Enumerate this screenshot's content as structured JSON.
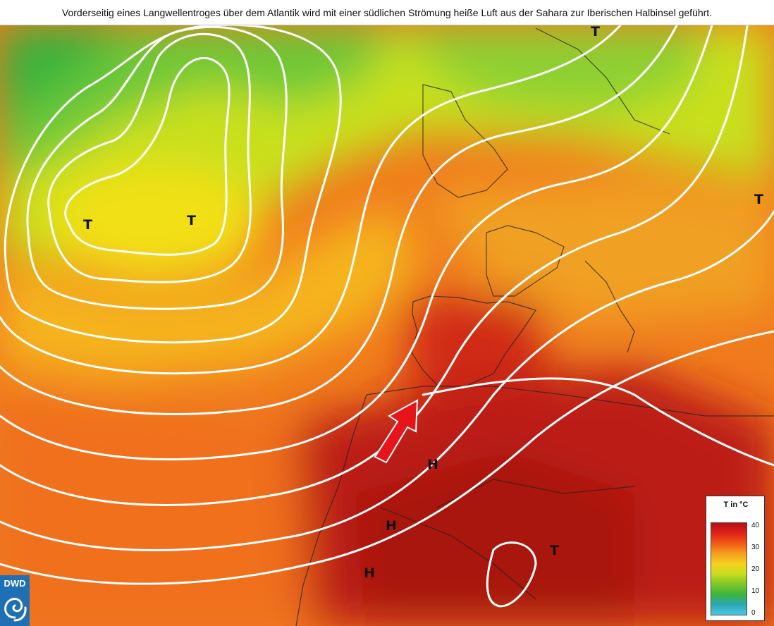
{
  "caption": "Vorderseitig eines Langwellentroges über dem Atlantik wird mit einer südlichen Strömung heiße Luft aus der Sahara zur Iberischen Halbinsel geführt.",
  "map": {
    "region": "North Atlantic, Europe and North Africa",
    "field": "temperature",
    "contours": "white geopotential isolines",
    "flow_arrow": {
      "color": "#e8141c",
      "direction": "north-east",
      "meaning": "southerly flow of hot Saharan air towards the Iberian Peninsula"
    },
    "pressure_symbols": [
      {
        "label": "T"
      },
      {
        "label": "T"
      },
      {
        "label": "T"
      },
      {
        "label": "T"
      },
      {
        "label": "T"
      },
      {
        "label": "H"
      },
      {
        "label": "H"
      },
      {
        "label": "H"
      }
    ]
  },
  "legend": {
    "title": "T in °C",
    "ticks": [
      "40",
      "30",
      "20",
      "10",
      "0"
    ],
    "colors": [
      "#b80f14",
      "#e0231a",
      "#f05a14",
      "#f5a020",
      "#f5d21e",
      "#c8dc1e",
      "#7ec828",
      "#3cb43c",
      "#2ca8b4",
      "#48c8e6"
    ]
  },
  "logo": {
    "text": "DWD",
    "color": "#1f6fb4"
  }
}
